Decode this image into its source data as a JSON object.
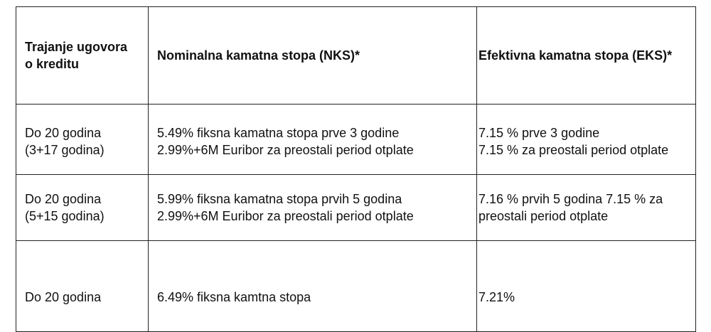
{
  "table": {
    "headers": [
      "Trajanje ugovora o kreditu",
      "Nominalna kamatna stopa (NKS)*",
      "Efektivna kamatna stopa (EKS)*"
    ],
    "rows": [
      {
        "duration": [
          "Do 20 godina",
          "(3+17 godina)"
        ],
        "nks": [
          "5.49% fiksna kamatna stopa prve 3 godine",
          "2.99%+6M Euribor za preostali period otplate"
        ],
        "eks": [
          "7.15 % prve 3 godine",
          "7.15 % za preostali period otplate"
        ]
      },
      {
        "duration": [
          "Do 20 godina",
          "(5+15 godina)"
        ],
        "nks": [
          "5.99% fiksna kamatna stopa prvih 5 godina",
          "2.99%+6M Euribor za preostali period otplate"
        ],
        "eks": [
          "7.16 % prvih 5 godina 7.15 % za",
          "preostali period otplate"
        ]
      },
      {
        "duration": [
          "Do 20 godina"
        ],
        "nks": [
          "6.49% fiksna kamtna stopa"
        ],
        "eks": [
          "7.21%"
        ]
      }
    ]
  }
}
